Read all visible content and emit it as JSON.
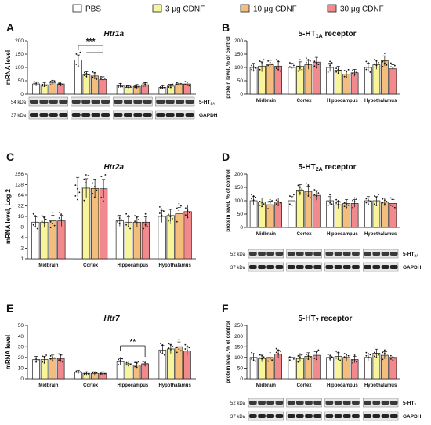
{
  "legend": [
    {
      "label": "PBS",
      "color": "#ffffff"
    },
    {
      "label": "3 μg CDNF",
      "color": "#f7f49a"
    },
    {
      "label": "10 μg CDNF",
      "color": "#f5bd7c"
    },
    {
      "label": "30 μg CDNF",
      "color": "#f2898c"
    }
  ],
  "blot_labels": {
    "A": {
      "target_kda": "54 kDa",
      "target": "5-HT1A",
      "ref_kda": "37 kDa",
      "ref": "GAPDH"
    },
    "D": {
      "target_kda": "52 kDa",
      "target": "5-HT2A",
      "ref_kda": "37 kDa",
      "ref": "GAPDH"
    },
    "F": {
      "target_kda": "52 kDa",
      "target": "5-HT7",
      "ref_kda": "37 kDa",
      "ref": "GAPDH"
    }
  },
  "chart_data": [
    {
      "panel": "A",
      "type": "bar",
      "title": "Htr1a",
      "ylabel": "mRNA level",
      "ylim": [
        0,
        200
      ],
      "yticks": [
        "0",
        "50",
        "100",
        "150",
        "200"
      ],
      "categories": [
        "Midbrain",
        "Cortex",
        "Hippocampus",
        "Hypothalamus"
      ],
      "series": [
        {
          "name": "PBS",
          "values": [
            38,
            128,
            32,
            25
          ]
        },
        {
          "name": "3 μg CDNF",
          "values": [
            35,
            72,
            25,
            30
          ]
        },
        {
          "name": "10 μg CDNF",
          "values": [
            42,
            68,
            29,
            38
          ]
        },
        {
          "name": "30 μg CDNF",
          "values": [
            38,
            55,
            35,
            38
          ]
        }
      ],
      "annotation": "***"
    },
    {
      "panel": "B",
      "type": "bar",
      "title": "5-HT1A receptor",
      "ylabel": "protein level, % of control",
      "ylim": [
        0,
        200
      ],
      "yticks": [
        "0",
        "50",
        "100",
        "150",
        "200"
      ],
      "categories": [
        "Midbrain",
        "Cortex",
        "Hippocampus",
        "Hypothalamus"
      ],
      "series": [
        {
          "name": "PBS",
          "values": [
            100,
            100,
            100,
            100
          ]
        },
        {
          "name": "3 μg CDNF",
          "values": [
            105,
            105,
            90,
            110
          ]
        },
        {
          "name": "10 μg CDNF",
          "values": [
            110,
            110,
            75,
            125
          ]
        },
        {
          "name": "30 μg CDNF",
          "values": [
            105,
            120,
            80,
            95
          ]
        }
      ]
    },
    {
      "panel": "C",
      "type": "bar",
      "title": "Htr2a",
      "ylabel": "mRNA level, Log 2",
      "ylim": [
        1,
        256
      ],
      "yticks": [
        "1",
        "2",
        "4",
        "8",
        "16",
        "32",
        "64",
        "128",
        "256"
      ],
      "categories": [
        "Midbrain",
        "Cortex",
        "Hippocampus",
        "Hypothalamus"
      ],
      "series": [
        {
          "name": "PBS",
          "values": [
            11,
            110,
            12,
            16
          ]
        },
        {
          "name": "3 μg CDNF",
          "values": [
            11,
            102,
            11,
            17
          ]
        },
        {
          "name": "10 μg CDNF",
          "values": [
            12,
            100,
            11,
            19
          ]
        },
        {
          "name": "30 μg CDNF",
          "values": [
            12,
            98,
            11,
            22
          ]
        }
      ]
    },
    {
      "panel": "D",
      "type": "bar",
      "title": "5-HT2A receptor",
      "ylabel": "protein level, % of control",
      "ylim": [
        0,
        200
      ],
      "yticks": [
        "0",
        "50",
        "100",
        "150",
        "200"
      ],
      "categories": [
        "Midbrain",
        "Cortex",
        "Hippocampus",
        "Hypothalamus"
      ],
      "series": [
        {
          "name": "PBS",
          "values": [
            100,
            100,
            100,
            100
          ]
        },
        {
          "name": "3 μg CDNF",
          "values": [
            95,
            140,
            85,
            100
          ]
        },
        {
          "name": "10 μg CDNF",
          "values": [
            85,
            135,
            90,
            95
          ]
        },
        {
          "name": "30 μg CDNF",
          "values": [
            95,
            120,
            90,
            90
          ]
        }
      ]
    },
    {
      "panel": "E",
      "type": "bar",
      "title": "Htr7",
      "ylabel": "mRNA level",
      "ylim": [
        0,
        50
      ],
      "yticks": [
        "0",
        "10",
        "20",
        "30",
        "40",
        "50"
      ],
      "categories": [
        "Midbrain",
        "Cortex",
        "Hippocampus",
        "Hypothalamus"
      ],
      "series": [
        {
          "name": "PBS",
          "values": [
            18,
            6,
            16,
            27
          ]
        },
        {
          "name": "3 μg CDNF",
          "values": [
            18,
            5,
            14,
            28
          ]
        },
        {
          "name": "10 μg CDNF",
          "values": [
            19,
            5,
            13,
            30
          ]
        },
        {
          "name": "30 μg CDNF",
          "values": [
            19,
            5,
            14,
            26
          ]
        }
      ],
      "annotation": "**"
    },
    {
      "panel": "F",
      "type": "bar",
      "title": "5-HT7 receptor",
      "ylabel": "protein level, % of control",
      "ylim": [
        0,
        250
      ],
      "yticks": [
        "0",
        "50",
        "100",
        "150",
        "200",
        "250"
      ],
      "categories": [
        "Midbrain",
        "Cortex",
        "Hippocampus",
        "Hypothalamus"
      ],
      "series": [
        {
          "name": "PBS",
          "values": [
            100,
            100,
            100,
            100
          ]
        },
        {
          "name": "3 μg CDNF",
          "values": [
            95,
            95,
            105,
            120
          ]
        },
        {
          "name": "10 μg CDNF",
          "values": [
            100,
            105,
            100,
            110
          ]
        },
        {
          "name": "30 μg CDNF",
          "values": [
            115,
            110,
            90,
            100
          ]
        }
      ]
    }
  ]
}
